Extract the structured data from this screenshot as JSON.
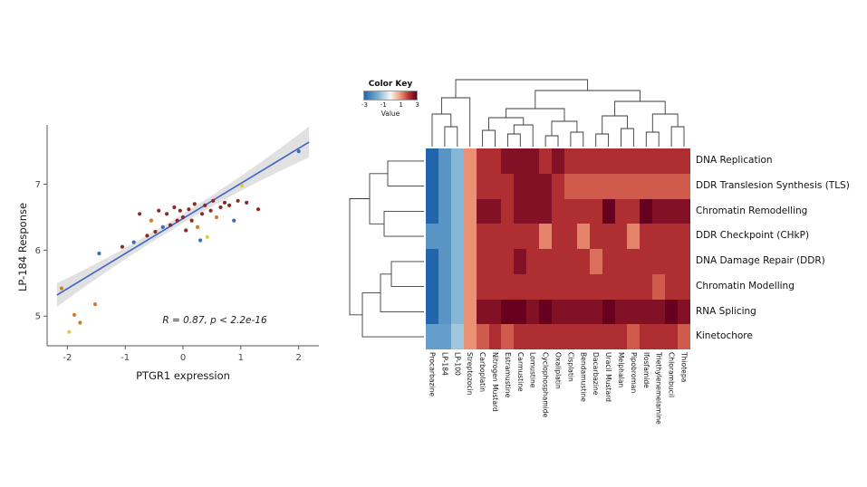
{
  "figure": {
    "background": "#ffffff"
  },
  "chart_data": [
    {
      "type": "scatter",
      "title": "",
      "xlabel": "PTGR1 expression",
      "ylabel": "LP-184 Response",
      "annotation": "R = 0.87, p < 2.2e-16",
      "xlim": [
        -2.35,
        2.35
      ],
      "ylim": [
        4.55,
        7.9
      ],
      "x_ticks": [
        -2,
        -1,
        0,
        1,
        2
      ],
      "y_ticks": [
        5,
        6,
        7
      ],
      "grid": false,
      "regression": {
        "x1": -2.18,
        "y1": 5.32,
        "x2": 2.18,
        "y2": 7.64,
        "line_color": "#3f63c8",
        "band_color": "#c8c8c8"
      },
      "point_colors": {
        "maroon": "#8b2a25",
        "blue": "#3a6fae",
        "orange": "#d07b28",
        "yellow": "#e0c93a"
      },
      "points": [
        [
          -2.1,
          5.42,
          "orange"
        ],
        [
          -1.97,
          4.76,
          "yellow"
        ],
        [
          -1.88,
          5.02,
          "orange"
        ],
        [
          -1.78,
          4.9,
          "orange"
        ],
        [
          -1.52,
          5.18,
          "orange"
        ],
        [
          -1.45,
          5.95,
          "blue"
        ],
        [
          -1.05,
          6.05,
          "maroon"
        ],
        [
          -0.85,
          6.12,
          "blue"
        ],
        [
          -0.75,
          6.55,
          "maroon"
        ],
        [
          -0.62,
          6.22,
          "maroon"
        ],
        [
          -0.55,
          6.45,
          "orange"
        ],
        [
          -0.48,
          6.28,
          "maroon"
        ],
        [
          -0.42,
          6.6,
          "maroon"
        ],
        [
          -0.35,
          6.35,
          "blue"
        ],
        [
          -0.28,
          6.55,
          "maroon"
        ],
        [
          -0.22,
          6.38,
          "maroon"
        ],
        [
          -0.15,
          6.65,
          "maroon"
        ],
        [
          -0.1,
          6.45,
          "maroon"
        ],
        [
          -0.05,
          6.6,
          "maroon"
        ],
        [
          0.0,
          6.5,
          "maroon"
        ],
        [
          0.05,
          6.3,
          "maroon"
        ],
        [
          0.1,
          6.62,
          "maroon"
        ],
        [
          0.15,
          6.45,
          "maroon"
        ],
        [
          0.2,
          6.7,
          "maroon"
        ],
        [
          0.25,
          6.35,
          "orange"
        ],
        [
          0.3,
          6.15,
          "blue"
        ],
        [
          0.33,
          6.55,
          "maroon"
        ],
        [
          0.38,
          6.68,
          "maroon"
        ],
        [
          0.42,
          6.2,
          "yellow"
        ],
        [
          0.48,
          6.6,
          "maroon"
        ],
        [
          0.52,
          6.75,
          "maroon"
        ],
        [
          0.58,
          6.5,
          "orange"
        ],
        [
          0.65,
          6.65,
          "maroon"
        ],
        [
          0.72,
          6.72,
          "maroon"
        ],
        [
          0.8,
          6.68,
          "maroon"
        ],
        [
          0.88,
          6.45,
          "blue"
        ],
        [
          0.95,
          6.75,
          "maroon"
        ],
        [
          1.02,
          6.98,
          "yellow"
        ],
        [
          1.1,
          6.72,
          "maroon"
        ],
        [
          1.3,
          6.62,
          "maroon"
        ],
        [
          2.0,
          7.5,
          "blue"
        ]
      ]
    },
    {
      "type": "heatmap",
      "color_key": {
        "title": "Color Key",
        "ticks": [
          "-3",
          "-1",
          "1",
          "3"
        ],
        "value_label": "Value",
        "min": -3,
        "max": 3
      },
      "rows": [
        "DNA Replication",
        "DDR Translesion Synthesis (TLS)",
        "Chromatin Remodelling",
        "DDR Checkpoint (CHkP)",
        "DNA Damage Repair (DDR)",
        "Chromatin Modelling",
        "RNA Splicing",
        "Kinetochore"
      ],
      "columns": [
        "Procarbazine",
        "LP-184",
        "LP-100",
        "Streptozocin",
        "Carboplatin",
        "Nitrogen Mustard",
        "Estramustine",
        "Carmustine",
        "Lomustine",
        "Cyclophosphamide",
        "Oxaliplatin",
        "Cisplatin",
        "Bendamustine",
        "Dacarbazine",
        "Uracil Mustard",
        "Melphalan",
        "Pipobroman",
        "Ifosfamide",
        "Triethylenemelamine",
        "Chlorambucil",
        "Thiotepa"
      ],
      "values": [
        [
          -3,
          -2,
          -1.3,
          1.2,
          2.2,
          2.2,
          2.7,
          2.7,
          2.7,
          2.2,
          2.7,
          2.2,
          2.2,
          2.2,
          2.2,
          2.2,
          2.2,
          2.2,
          2.2,
          2.2,
          2.2
        ],
        [
          -3,
          -2,
          -1.3,
          1.2,
          2.2,
          2.2,
          2.2,
          2.7,
          2.7,
          2.7,
          2.2,
          1.7,
          1.7,
          1.7,
          1.7,
          1.7,
          1.7,
          1.7,
          1.7,
          1.7,
          1.7
        ],
        [
          -3,
          -2,
          -1.3,
          1.2,
          2.7,
          2.7,
          2.2,
          2.7,
          2.7,
          2.7,
          2.2,
          2.2,
          2.2,
          2.2,
          3,
          2.2,
          2.2,
          3,
          2.7,
          2.7,
          2.7
        ],
        [
          -2,
          -2,
          -1.3,
          1.2,
          2.2,
          2.2,
          2.2,
          2.2,
          2.2,
          1.3,
          2.2,
          2.2,
          1.3,
          2.2,
          2.2,
          2.2,
          1.3,
          2.2,
          2.2,
          2.2,
          2.2
        ],
        [
          -3,
          -2,
          -1.3,
          1.2,
          2.2,
          2.2,
          2.2,
          2.7,
          2.2,
          2.2,
          2.2,
          2.2,
          2.2,
          1.5,
          2.2,
          2.2,
          2.2,
          2.2,
          2.2,
          2.2,
          2.2
        ],
        [
          -3,
          -2,
          -1.3,
          1.2,
          2.2,
          2.2,
          2.2,
          2.2,
          2.2,
          2.2,
          2.2,
          2.2,
          2.2,
          2.2,
          2.2,
          2.2,
          2.2,
          2.2,
          1.7,
          2.2,
          2.2
        ],
        [
          -3,
          -2,
          -1.3,
          1.2,
          2.7,
          2.7,
          3,
          3,
          2.7,
          3,
          2.7,
          2.7,
          2.7,
          2.7,
          3,
          2.7,
          2.7,
          2.7,
          2.7,
          3,
          2.7
        ],
        [
          -1.8,
          -1.8,
          -1,
          1.2,
          1.7,
          2.2,
          1.7,
          2.2,
          2.2,
          2.2,
          2.2,
          2.2,
          2.2,
          2.2,
          2.2,
          2.2,
          1.7,
          2.2,
          2.2,
          2.2,
          1.7
        ]
      ],
      "color_stops": [
        [
          -3,
          "#2166ac"
        ],
        [
          -1.5,
          "#74add1"
        ],
        [
          0,
          "#f7f7f7"
        ],
        [
          1,
          "#f4a582"
        ],
        [
          2,
          "#c03a35"
        ],
        [
          3,
          "#67001f"
        ]
      ]
    }
  ]
}
